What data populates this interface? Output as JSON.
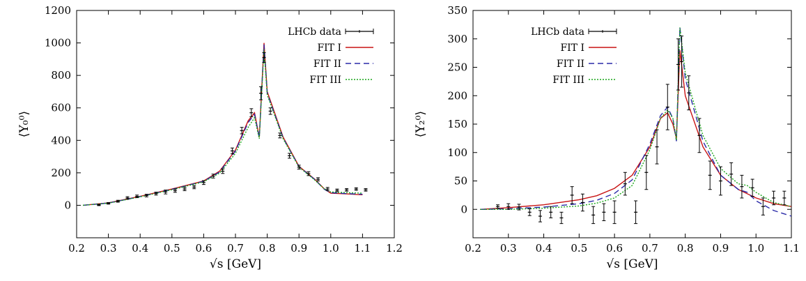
{
  "chart_data": [
    {
      "type": "line",
      "xlabel": "√s [GeV]",
      "ylabel": "⟨Y₀⁰⟩",
      "xlim": [
        0.2,
        1.2
      ],
      "ylim": [
        -200,
        1200
      ],
      "xticks": [
        "0.2",
        "0.3",
        "0.4",
        "0.5",
        "0.6",
        "0.7",
        "0.8",
        "0.9",
        "1.0",
        "1.1",
        "1.2"
      ],
      "yticks": [
        "0",
        "200",
        "400",
        "600",
        "800",
        "1000",
        "1200"
      ],
      "legend_position": "top-right",
      "data_points": {
        "name": "LHCb data",
        "x": [
          0.27,
          0.3,
          0.33,
          0.36,
          0.39,
          0.42,
          0.45,
          0.48,
          0.51,
          0.54,
          0.57,
          0.6,
          0.63,
          0.66,
          0.69,
          0.72,
          0.75,
          0.78,
          0.79,
          0.81,
          0.84,
          0.87,
          0.9,
          0.93,
          0.96,
          0.99,
          1.02,
          1.05,
          1.08,
          1.11
        ],
        "y": [
          2,
          12,
          25,
          45,
          55,
          60,
          72,
          82,
          90,
          100,
          112,
          140,
          180,
          210,
          335,
          460,
          570,
          690,
          910,
          580,
          430,
          305,
          235,
          195,
          160,
          100,
          92,
          95,
          100,
          95
        ],
        "err": [
          4,
          5,
          6,
          8,
          8,
          8,
          9,
          12,
          10,
          10,
          10,
          12,
          12,
          14,
          18,
          20,
          25,
          40,
          30,
          20,
          15,
          15,
          12,
          12,
          10,
          10,
          8,
          8,
          8,
          8
        ]
      },
      "series": [
        {
          "name": "FIT I",
          "color": "#c81414",
          "x": [
            0.22,
            0.3,
            0.4,
            0.5,
            0.6,
            0.65,
            0.7,
            0.74,
            0.76,
            0.775,
            0.79,
            0.8,
            0.85,
            0.9,
            0.95,
            0.98,
            1.0,
            1.05,
            1.1
          ],
          "y": [
            0,
            15,
            55,
            100,
            150,
            210,
            340,
            520,
            570,
            420,
            1000,
            700,
            420,
            240,
            160,
            100,
            75,
            70,
            65
          ]
        },
        {
          "name": "FIT II",
          "color": "#2a2aa8",
          "x": [
            0.22,
            0.3,
            0.4,
            0.5,
            0.6,
            0.65,
            0.7,
            0.74,
            0.76,
            0.775,
            0.79,
            0.8,
            0.85,
            0.9,
            0.95,
            0.98,
            1.0,
            1.05,
            1.1
          ],
          "y": [
            0,
            14,
            54,
            98,
            148,
            205,
            335,
            510,
            560,
            415,
            990,
            690,
            415,
            238,
            158,
            98,
            78,
            72,
            68
          ]
        },
        {
          "name": "FIT III",
          "color": "#19a619",
          "x": [
            0.22,
            0.3,
            0.4,
            0.5,
            0.6,
            0.65,
            0.7,
            0.74,
            0.76,
            0.775,
            0.79,
            0.8,
            0.85,
            0.9,
            0.95,
            0.98,
            1.0,
            1.05,
            1.1
          ],
          "y": [
            0,
            13,
            52,
            96,
            145,
            198,
            320,
            480,
            540,
            410,
            960,
            680,
            410,
            235,
            155,
            100,
            82,
            78,
            75
          ]
        }
      ]
    },
    {
      "type": "line",
      "xlabel": "√s [GeV]",
      "ylabel": "⟨Y₂⁰⟩",
      "xlim": [
        0.2,
        1.1
      ],
      "ylim": [
        -50,
        350
      ],
      "xticks": [
        "0.2",
        "0.3",
        "0.4",
        "0.5",
        "0.6",
        "0.7",
        "0.8",
        "0.9",
        "1.0",
        "1.1"
      ],
      "yticks": [
        "0",
        "50",
        "100",
        "150",
        "200",
        "250",
        "300",
        "350"
      ],
      "legend_position": "top-left",
      "data_points": {
        "name": "LHCb data",
        "x": [
          0.27,
          0.3,
          0.33,
          0.36,
          0.39,
          0.42,
          0.45,
          0.48,
          0.51,
          0.54,
          0.57,
          0.6,
          0.63,
          0.66,
          0.69,
          0.72,
          0.75,
          0.78,
          0.79,
          0.81,
          0.84,
          0.87,
          0.9,
          0.93,
          0.96,
          0.99,
          1.02,
          1.05,
          1.08
        ],
        "y": [
          5,
          5,
          4,
          -5,
          -12,
          -5,
          -15,
          25,
          12,
          -10,
          -5,
          -5,
          45,
          -5,
          65,
          110,
          180,
          255,
          260,
          205,
          130,
          60,
          50,
          62,
          40,
          38,
          5,
          20,
          20
        ],
        "err": [
          3,
          5,
          5,
          6,
          10,
          10,
          10,
          15,
          15,
          15,
          15,
          20,
          20,
          20,
          30,
          30,
          40,
          45,
          45,
          30,
          30,
          25,
          25,
          20,
          20,
          15,
          15,
          12,
          12
        ]
      },
      "series": [
        {
          "name": "FIT I",
          "color": "#c81414",
          "x": [
            0.22,
            0.3,
            0.4,
            0.5,
            0.55,
            0.6,
            0.65,
            0.7,
            0.73,
            0.75,
            0.765,
            0.775,
            0.785,
            0.8,
            0.85,
            0.9,
            0.95,
            1.0,
            1.05,
            1.1
          ],
          "y": [
            0,
            3,
            8,
            17,
            24,
            37,
            60,
            110,
            160,
            170,
            150,
            125,
            280,
            200,
            110,
            60,
            35,
            20,
            10,
            5
          ]
        },
        {
          "name": "FIT II",
          "color": "#2a2aa8",
          "x": [
            0.22,
            0.3,
            0.4,
            0.5,
            0.55,
            0.6,
            0.65,
            0.7,
            0.73,
            0.75,
            0.765,
            0.775,
            0.785,
            0.8,
            0.85,
            0.9,
            0.95,
            0.975,
            1.0,
            1.05,
            1.1
          ],
          "y": [
            0,
            1,
            4,
            10,
            16,
            28,
            52,
            115,
            165,
            180,
            160,
            120,
            320,
            230,
            120,
            60,
            35,
            30,
            15,
            -2,
            -12
          ]
        },
        {
          "name": "FIT III",
          "color": "#19a619",
          "x": [
            0.22,
            0.3,
            0.4,
            0.5,
            0.55,
            0.6,
            0.65,
            0.7,
            0.73,
            0.75,
            0.765,
            0.775,
            0.785,
            0.8,
            0.85,
            0.9,
            0.95,
            0.975,
            1.0,
            1.05,
            1.1
          ],
          "y": [
            0,
            0,
            2,
            6,
            11,
            20,
            42,
            105,
            160,
            175,
            160,
            122,
            320,
            240,
            130,
            72,
            45,
            42,
            30,
            12,
            5
          ]
        }
      ]
    }
  ]
}
